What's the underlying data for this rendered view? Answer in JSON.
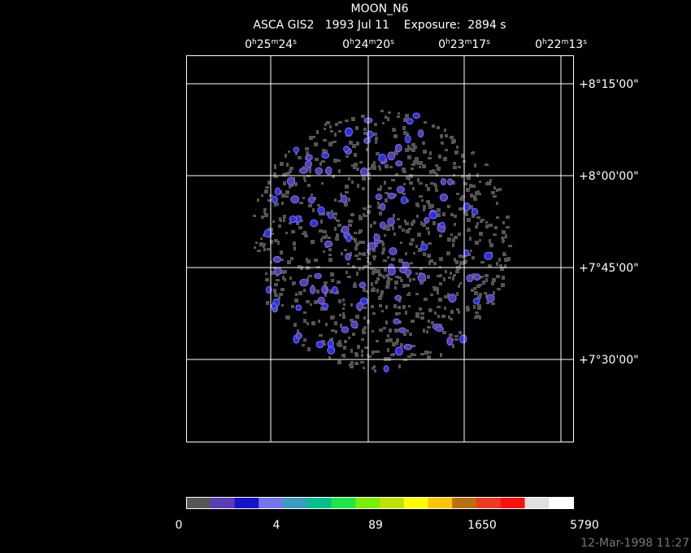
{
  "title": "MOON_N6",
  "subtitle": "ASCA GIS2   1993 Jul 11    Exposure:  2894 s",
  "ra_labels": [
    [
      "0",
      "h",
      "25",
      "m",
      "24",
      "s"
    ],
    [
      "0",
      "h",
      "24",
      "m",
      "20",
      "s"
    ],
    [
      "0",
      "h",
      "23",
      "m",
      "17",
      "s"
    ],
    [
      "0",
      "h",
      "22",
      "m",
      "13",
      "s"
    ]
  ],
  "dec_labels": [
    "+8°15'00\"",
    "+8°00'00\"",
    "+7°45'00\"",
    "+7°30'00\""
  ],
  "colorbar": {
    "colors": [
      "#555555",
      "#5a3cb4",
      "#1414c8",
      "#7474f0",
      "#3c9cc0",
      "#00c08c",
      "#1ee646",
      "#78f000",
      "#bce400",
      "#ffff00",
      "#ffc400",
      "#b87010",
      "#ec3a1e",
      "#ff1010",
      "#e0e0e0",
      "#ffffff"
    ],
    "labels": [
      "0",
      "4",
      "89",
      "1650",
      "5790"
    ]
  },
  "timestamp": "12-Mar-1998 11:27"
}
